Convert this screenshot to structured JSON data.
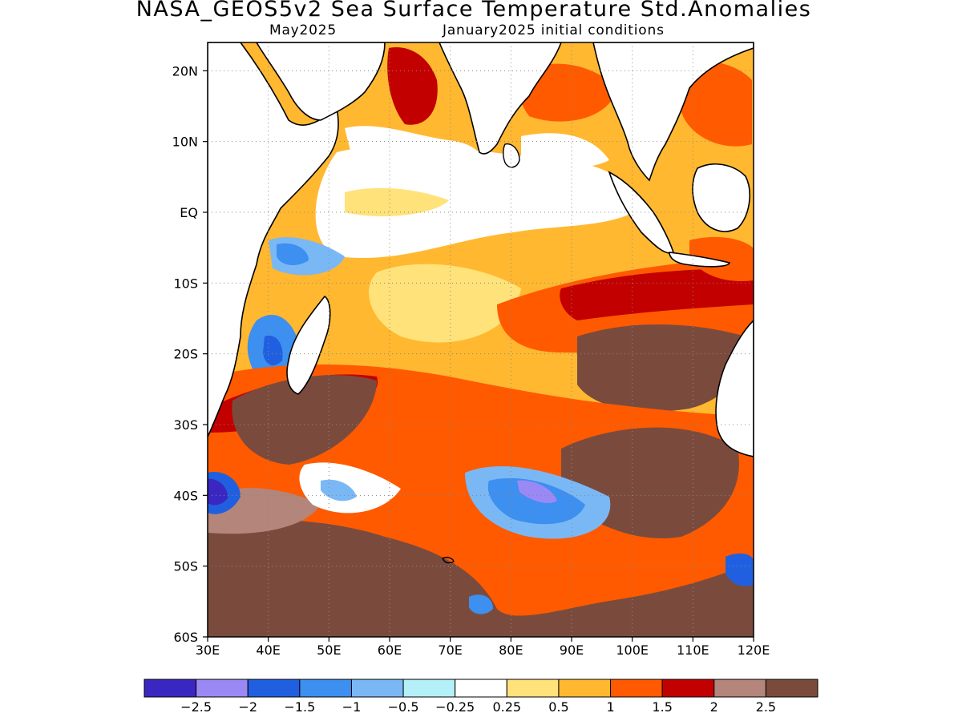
{
  "header": {
    "title": "NASA_GEOS5v2 Sea Surface Temperature Std.Anomalies",
    "valid_month": "May2025",
    "init": "January2025 initial conditions"
  },
  "map": {
    "lon_range": [
      30,
      120
    ],
    "lat_range": [
      -60,
      24
    ],
    "lon_ticks": [
      "30E",
      "40E",
      "50E",
      "60E",
      "70E",
      "80E",
      "90E",
      "100E",
      "110E",
      "120E"
    ],
    "lat_ticks": [
      "20N",
      "10N",
      "EQ",
      "10S",
      "20S",
      "30S",
      "40S",
      "50S",
      "60S"
    ],
    "grid": true
  },
  "colorbar": {
    "colors": [
      "#3a27c1",
      "#9a89f5",
      "#2060e0",
      "#3d8ff0",
      "#7ab8f5",
      "#b4f0f8",
      "#ffffff",
      "#ffe27a",
      "#ffb830",
      "#ff5a00",
      "#c20000",
      "#b4857a",
      "#7a4b3d"
    ],
    "labels": [
      "-2.5",
      "-2",
      "-1.5",
      "-1",
      "-0.5",
      "-0.25",
      "0.25",
      "0.5",
      "1",
      "1.5",
      "2",
      "2.5"
    ]
  }
}
